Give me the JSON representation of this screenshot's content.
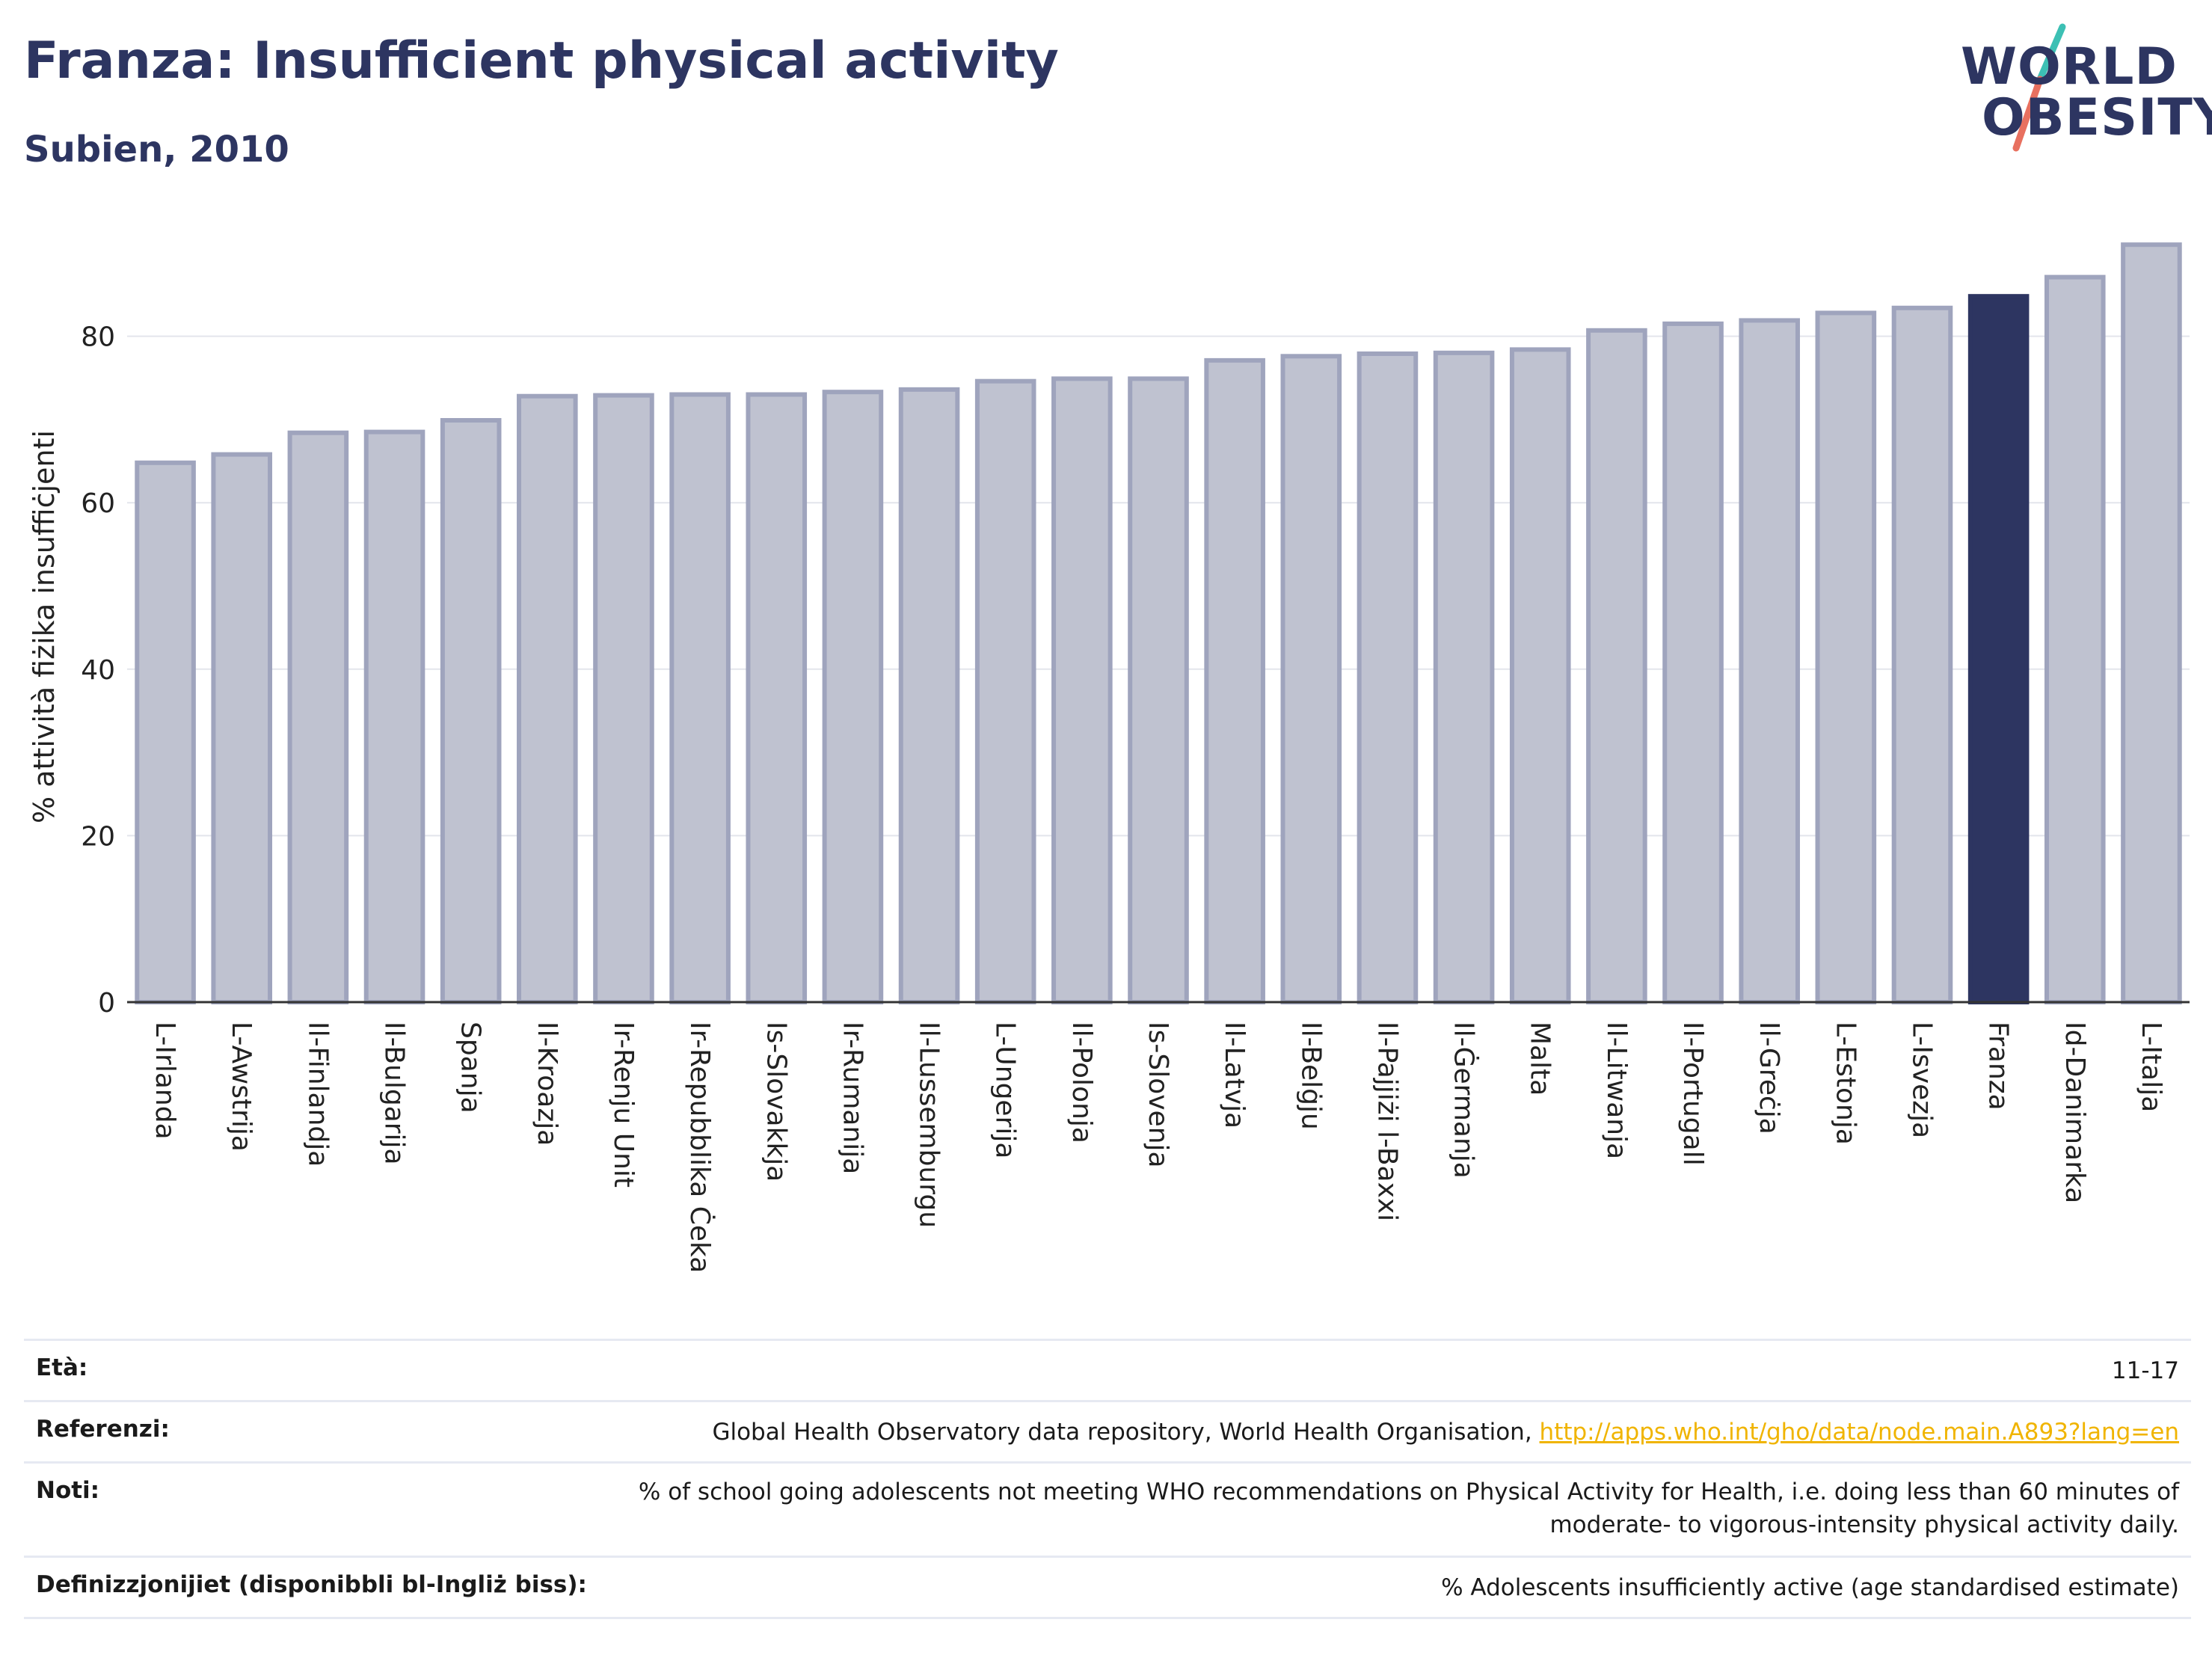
{
  "header": {
    "title": "Franza: Insufficient physical activity",
    "subtitle": "Subien, 2010"
  },
  "logo": {
    "line1": "WORLD",
    "line2": "OBESITY",
    "colors": {
      "text": "#2d3561",
      "slash_top": "#3cc0b4",
      "slash_bottom": "#e8705f"
    }
  },
  "colors": {
    "bar_default": "#bfc2d0",
    "bar_default_border": "#9fa4bd",
    "bar_highlight": "#2d3561",
    "gridline": "#e3e5ec",
    "baseline": "#333333"
  },
  "chart_data": {
    "type": "bar",
    "ylabel": "% attività fiżika insuffiċjenti",
    "xlabel": "",
    "ylim": [
      0,
      91
    ],
    "yticks": [
      0,
      20,
      40,
      60,
      80
    ],
    "grid": true,
    "highlight": "Franza",
    "categories": [
      "L-Irlanda",
      "L-Awstrija",
      "Il-Finlandja",
      "Il-Bulgarija",
      "Spanja",
      "Il-Kroazja",
      "Ir-Renju Unit",
      "Ir-Repubblika Ċeka",
      "Is-Slovakkja",
      "Ir-Rumanija",
      "Il-Lussemburgu",
      "L-Ungerija",
      "Il-Polonja",
      "Is-Slovenja",
      "Il-Latvja",
      "Il-Belġju",
      "Il-Pajjiżi l-Baxxi",
      "Il-Ġermanja",
      "Malta",
      "Il-Litwanja",
      "Il-Portugall",
      "Il-Greċja",
      "L-Estonja",
      "L-Isvezja",
      "Franza",
      "Id-Danimarka",
      "L-Italja"
    ],
    "values": [
      64.8,
      65.8,
      68.4,
      68.5,
      69.9,
      72.8,
      72.9,
      73.0,
      73.0,
      73.3,
      73.6,
      74.6,
      74.9,
      74.9,
      77.1,
      77.6,
      77.9,
      78.0,
      78.4,
      80.7,
      81.5,
      81.9,
      82.8,
      83.4,
      84.8,
      87.1,
      91.0
    ]
  },
  "info": {
    "rows": [
      {
        "label": "Età:",
        "value": "11-17",
        "link": ""
      },
      {
        "label": "Referenzi:",
        "value": "Global Health Observatory data repository, World Health Organisation, ",
        "link": "http://apps.who.int/gho/data/node.main.A893?lang=en"
      },
      {
        "label": "Noti:",
        "value": "% of school going adolescents not meeting WHO recommendations on Physical Activity for Health, i.e. doing less than 60 minutes of moderate- to vigorous-intensity physical activity daily.",
        "link": ""
      },
      {
        "label": "Definizzjonijiet (disponibbli bl-Ingliż biss):",
        "value": "% Adolescents insufficiently active (age standardised estimate)",
        "link": ""
      }
    ]
  }
}
